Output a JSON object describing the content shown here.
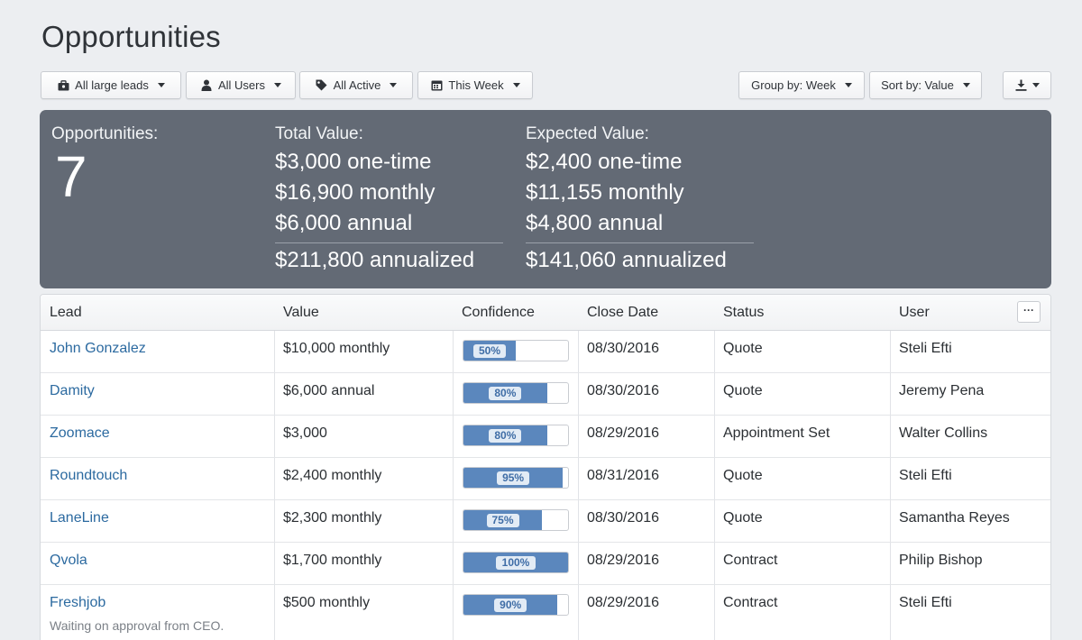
{
  "page": {
    "title": "Opportunities"
  },
  "filters": {
    "leads": {
      "label": "All large leads",
      "icon": "briefcase-icon"
    },
    "users": {
      "label": "All Users",
      "icon": "user-icon"
    },
    "status": {
      "label": "All Active",
      "icon": "tag-icon"
    },
    "period": {
      "label": "This Week",
      "icon": "calendar-icon"
    },
    "group_by": {
      "label": "Group by: Week"
    },
    "sort_by": {
      "label": "Sort by: Value"
    },
    "export": {
      "icon": "download-icon"
    }
  },
  "summary": {
    "count_label": "Opportunities:",
    "count": "7",
    "total": {
      "label": "Total Value:",
      "one_time": "$3,000 one-time",
      "monthly": "$16,900 monthly",
      "annual": "$6,000 annual",
      "annualized": "$211,800 annualized"
    },
    "expected": {
      "label": "Expected Value:",
      "one_time": "$2,400 one-time",
      "monthly": "$11,155 monthly",
      "annual": "$4,800 annual",
      "annualized": "$141,060 annualized"
    }
  },
  "table": {
    "columns": [
      "Lead",
      "Value",
      "Confidence",
      "Close Date",
      "Status",
      "User"
    ],
    "more_label": "···",
    "rows": [
      {
        "lead": "John Gonzalez",
        "value": "$10,000 monthly",
        "confidence": 50,
        "confidence_label": "50%",
        "close_date": "08/30/2016",
        "status": "Quote",
        "user": "Steli Efti"
      },
      {
        "lead": "Damity",
        "value": "$6,000 annual",
        "confidence": 80,
        "confidence_label": "80%",
        "close_date": "08/30/2016",
        "status": "Quote",
        "user": "Jeremy Pena"
      },
      {
        "lead": "Zoomace",
        "value": "$3,000",
        "confidence": 80,
        "confidence_label": "80%",
        "close_date": "08/29/2016",
        "status": "Appointment Set",
        "user": "Walter Collins"
      },
      {
        "lead": "Roundtouch",
        "value": "$2,400 monthly",
        "confidence": 95,
        "confidence_label": "95%",
        "close_date": "08/31/2016",
        "status": "Quote",
        "user": "Steli Efti"
      },
      {
        "lead": "LaneLine",
        "value": "$2,300 monthly",
        "confidence": 75,
        "confidence_label": "75%",
        "close_date": "08/30/2016",
        "status": "Quote",
        "user": "Samantha Reyes"
      },
      {
        "lead": "Qvola",
        "value": "$1,700 monthly",
        "confidence": 100,
        "confidence_label": "100%",
        "close_date": "08/29/2016",
        "status": "Contract",
        "user": "Philip Bishop"
      },
      {
        "lead": "Freshjob",
        "value": "$500 monthly",
        "confidence": 90,
        "confidence_label": "90%",
        "close_date": "08/29/2016",
        "status": "Contract",
        "user": "Steli Efti",
        "note": "Waiting on approval from CEO."
      }
    ]
  },
  "colors": {
    "summary_bg": "#636a75",
    "link": "#2c6aa0",
    "confidence_fill": "#5b87bd",
    "confidence_pill_bg": "#e2ebf5",
    "confidence_pill_text": "#3f6da6"
  }
}
